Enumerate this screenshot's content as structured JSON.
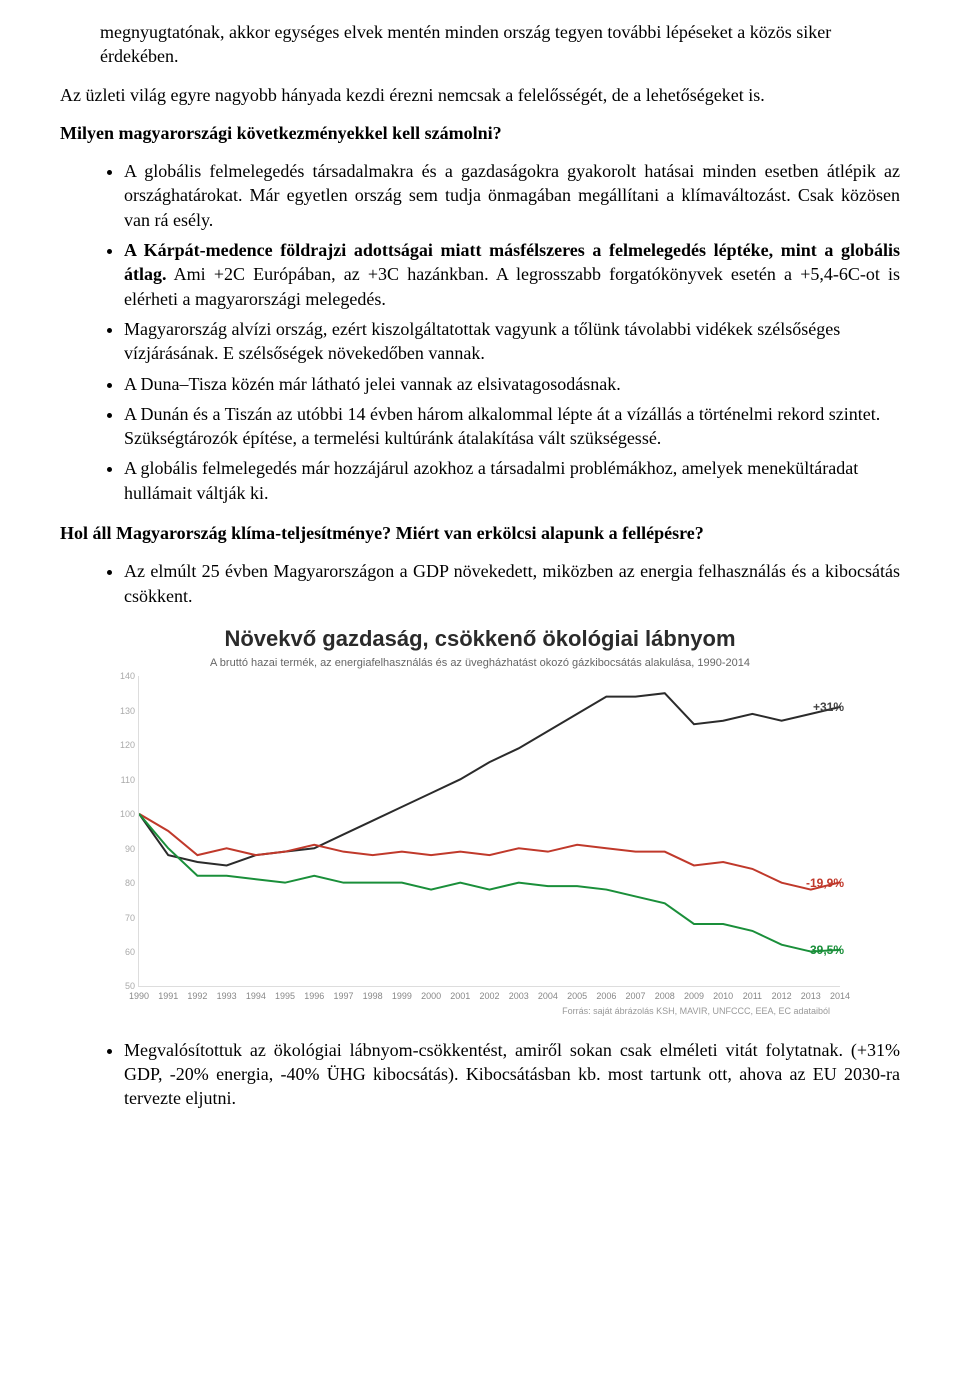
{
  "intro": {
    "p1": "megnyugtatónak, akkor egységes elvek mentén minden ország tegyen további lépéseket a közös siker érdekében.",
    "p2": "Az üzleti világ egyre nagyobb hányada kezdi érezni nemcsak a felelősségét, de a lehetőségeket is.",
    "h1": "Milyen magyarországi következményekkel kell számolni?"
  },
  "bullets1": {
    "b1": "A globális felmelegedés társadalmakra és a gazdaságokra gyakorolt hatásai minden esetben átlépik az országhatárokat. Már egyetlen ország sem tudja önmagában megállítani a klímaváltozást. Csak közösen van rá esély.",
    "b2a": "A Kárpát-medence földrajzi adottságai miatt másfélszeres a felmelegedés léptéke, mint a globális átlag.",
    "b2b": " Ami +2C Európában, az +3C hazánkban. A legrosszabb forgatókönyvek esetén a +5,4-6C-ot is elérheti a magyarországi melegedés.",
    "b3": "Magyarország alvízi ország, ezért kiszolgáltatottak vagyunk a tőlünk távolabbi vidékek szélsőséges vízjárásának. E szélsőségek növekedőben vannak.",
    "b4": "A Duna–Tisza közén már látható jelei vannak az elsivatagosodásnak.",
    "b5": "A Dunán és a Tiszán az utóbbi 14 évben három alkalommal lépte át a vízállás a történelmi rekord szintet. Szükségtározók építése, a termelési kultúránk átalakítása vált szükségessé.",
    "b6": "A globális felmelegedés már hozzájárul azokhoz a társadalmi problémákhoz, amelyek menekültáradat hullámait váltják ki."
  },
  "h2": "Hol áll Magyarország klíma-teljesítménye? Miért van erkölcsi alapunk a fellépésre?",
  "bullets2": {
    "b1": "Az elmúlt 25 évben Magyarországon a GDP növekedett, miközben az energia felhasználás és a kibocsátás csökkent.",
    "b2": "Megvalósítottuk az ökológiai lábnyom-csökkentést, amiről sokan csak elméleti vitát folytatnak. (+31% GDP, -20% energia, -40% ÜHG kibocsátás). Kibocsátásban kb. most tartunk ott, ahova az EU 2030-ra tervezte eljutni."
  },
  "chart": {
    "title": "Növekvő gazdaság, csökkenő ökológiai lábnyom",
    "subtitle": "A bruttó hazai termék, az energiafelhasználás és az üvegházhatást okozó gázkibocsátás alakulása, 1990-2014",
    "type": "line",
    "ylim_min": 50,
    "ylim_max": 140,
    "yticks": [
      140,
      130,
      120,
      110,
      100,
      90,
      80,
      70,
      60,
      50
    ],
    "xlabels": [
      "1990",
      "1991",
      "1992",
      "1993",
      "1994",
      "1995",
      "1996",
      "1997",
      "1998",
      "1999",
      "2000",
      "2001",
      "2002",
      "2003",
      "2004",
      "2005",
      "2006",
      "2007",
      "2008",
      "2009",
      "2010",
      "2011",
      "2012",
      "2013",
      "2014"
    ],
    "series": {
      "gdp": {
        "color": "#2b2b2b",
        "values": [
          100,
          88,
          86,
          85,
          88,
          89,
          90,
          94,
          98,
          102,
          106,
          110,
          115,
          119,
          124,
          129,
          134,
          134,
          135,
          126,
          127,
          129,
          127,
          129,
          131
        ],
        "end_label": "+31%",
        "label_color": "#444"
      },
      "energy": {
        "color": "#c0392b",
        "values": [
          100,
          95,
          88,
          90,
          88,
          89,
          91,
          89,
          88,
          89,
          88,
          89,
          88,
          90,
          89,
          91,
          90,
          89,
          89,
          85,
          86,
          84,
          80,
          78,
          80.1
        ],
        "end_label": "-19,9%",
        "label_color": "#c0392b"
      },
      "ghg": {
        "color": "#1a8f3a",
        "values": [
          100,
          90,
          82,
          82,
          81,
          80,
          82,
          80,
          80,
          80,
          78,
          80,
          78,
          80,
          79,
          79,
          78,
          76,
          74,
          68,
          68,
          66,
          62,
          60,
          60.5
        ],
        "end_label": "-39,5%",
        "label_color": "#1a8f3a"
      }
    },
    "footer": "Forrás: saját ábrázolás KSH, MAVIR, UNFCCC, EEA, EC adataiból",
    "background_color": "#ffffff",
    "grid_color": "#eeeeee",
    "line_width": 2
  }
}
